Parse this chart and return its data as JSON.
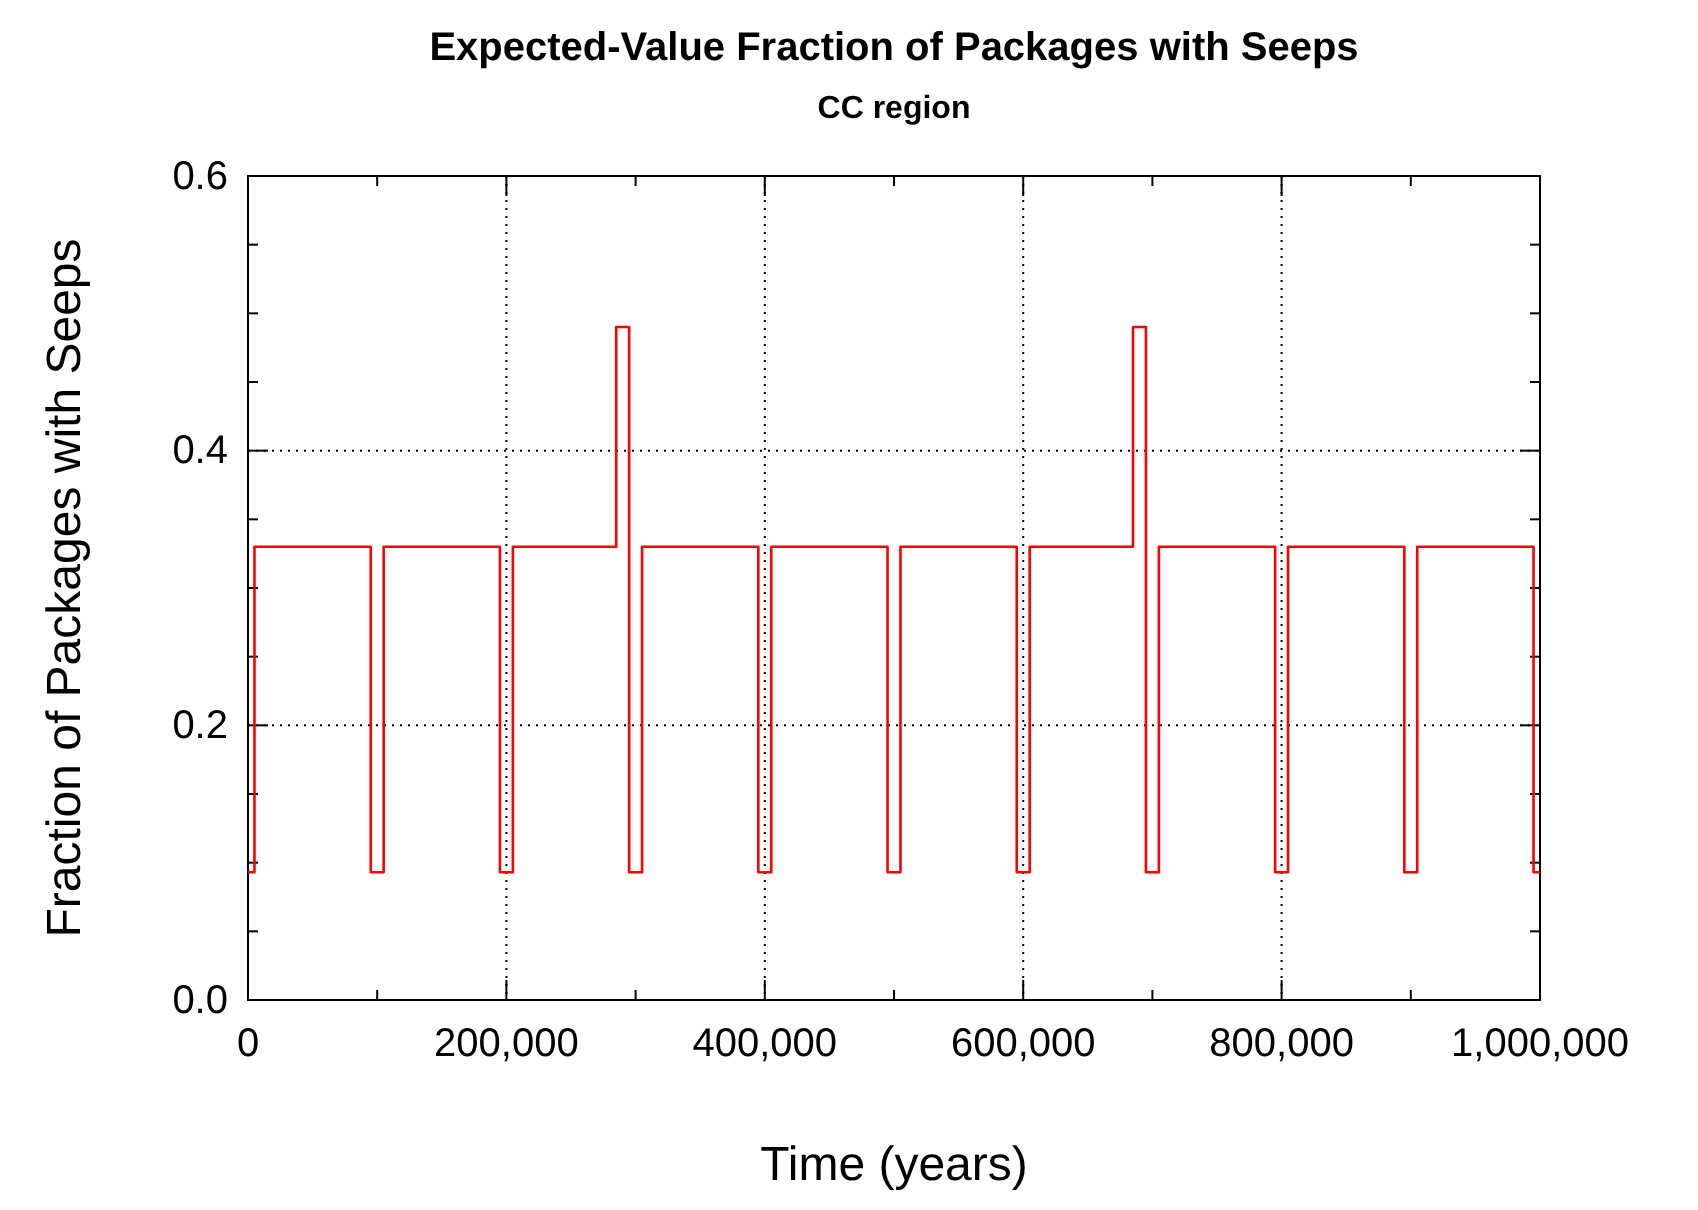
{
  "chart_data": {
    "type": "step",
    "title": "Expected-Value Fraction of Packages with Seeps",
    "subtitle": "CC region",
    "xlabel": "Time (years)",
    "ylabel": "Fraction of Packages with Seeps",
    "xlim": [
      0,
      1000000
    ],
    "ylim": [
      0,
      0.6
    ],
    "xticks": [
      {
        "value": 0,
        "label": "0"
      },
      {
        "value": 100000,
        "label": null
      },
      {
        "value": 200000,
        "label": "200,000"
      },
      {
        "value": 300000,
        "label": null
      },
      {
        "value": 400000,
        "label": "400,000"
      },
      {
        "value": 500000,
        "label": null
      },
      {
        "value": 600000,
        "label": "600,000"
      },
      {
        "value": 700000,
        "label": null
      },
      {
        "value": 800000,
        "label": "800,000"
      },
      {
        "value": 900000,
        "label": null
      },
      {
        "value": 1000000,
        "label": "1,000,000"
      }
    ],
    "yticks": [
      {
        "value": 0,
        "label": "0.0"
      },
      {
        "value": 0.05,
        "label": null
      },
      {
        "value": 0.1,
        "label": null
      },
      {
        "value": 0.15,
        "label": null
      },
      {
        "value": 0.2,
        "label": "0.2"
      },
      {
        "value": 0.25,
        "label": null
      },
      {
        "value": 0.3,
        "label": null
      },
      {
        "value": 0.35,
        "label": null
      },
      {
        "value": 0.4,
        "label": "0.4"
      },
      {
        "value": 0.45,
        "label": null
      },
      {
        "value": 0.5,
        "label": null
      },
      {
        "value": 0.55,
        "label": null
      },
      {
        "value": 0.6,
        "label": "0.6"
      }
    ],
    "grid": true,
    "line_style": "solid",
    "marker": "none",
    "x": [
      0,
      5000,
      95000,
      105000,
      195000,
      205000,
      285000,
      295000,
      305000,
      395000,
      405000,
      495000,
      505000,
      595000,
      605000,
      685000,
      695000,
      705000,
      795000,
      805000,
      895000,
      905000,
      995000,
      1000000
    ],
    "series": [
      {
        "color": "#ff0000",
        "values": [
          0.093,
          0.33,
          0.093,
          0.33,
          0.093,
          0.33,
          0.49,
          0.093,
          0.33,
          0.093,
          0.33,
          0.093,
          0.33,
          0.093,
          0.33,
          0.49,
          0.093,
          0.33,
          0.093,
          0.33,
          0.093,
          0.33,
          0.093,
          0.093
        ]
      }
    ]
  }
}
